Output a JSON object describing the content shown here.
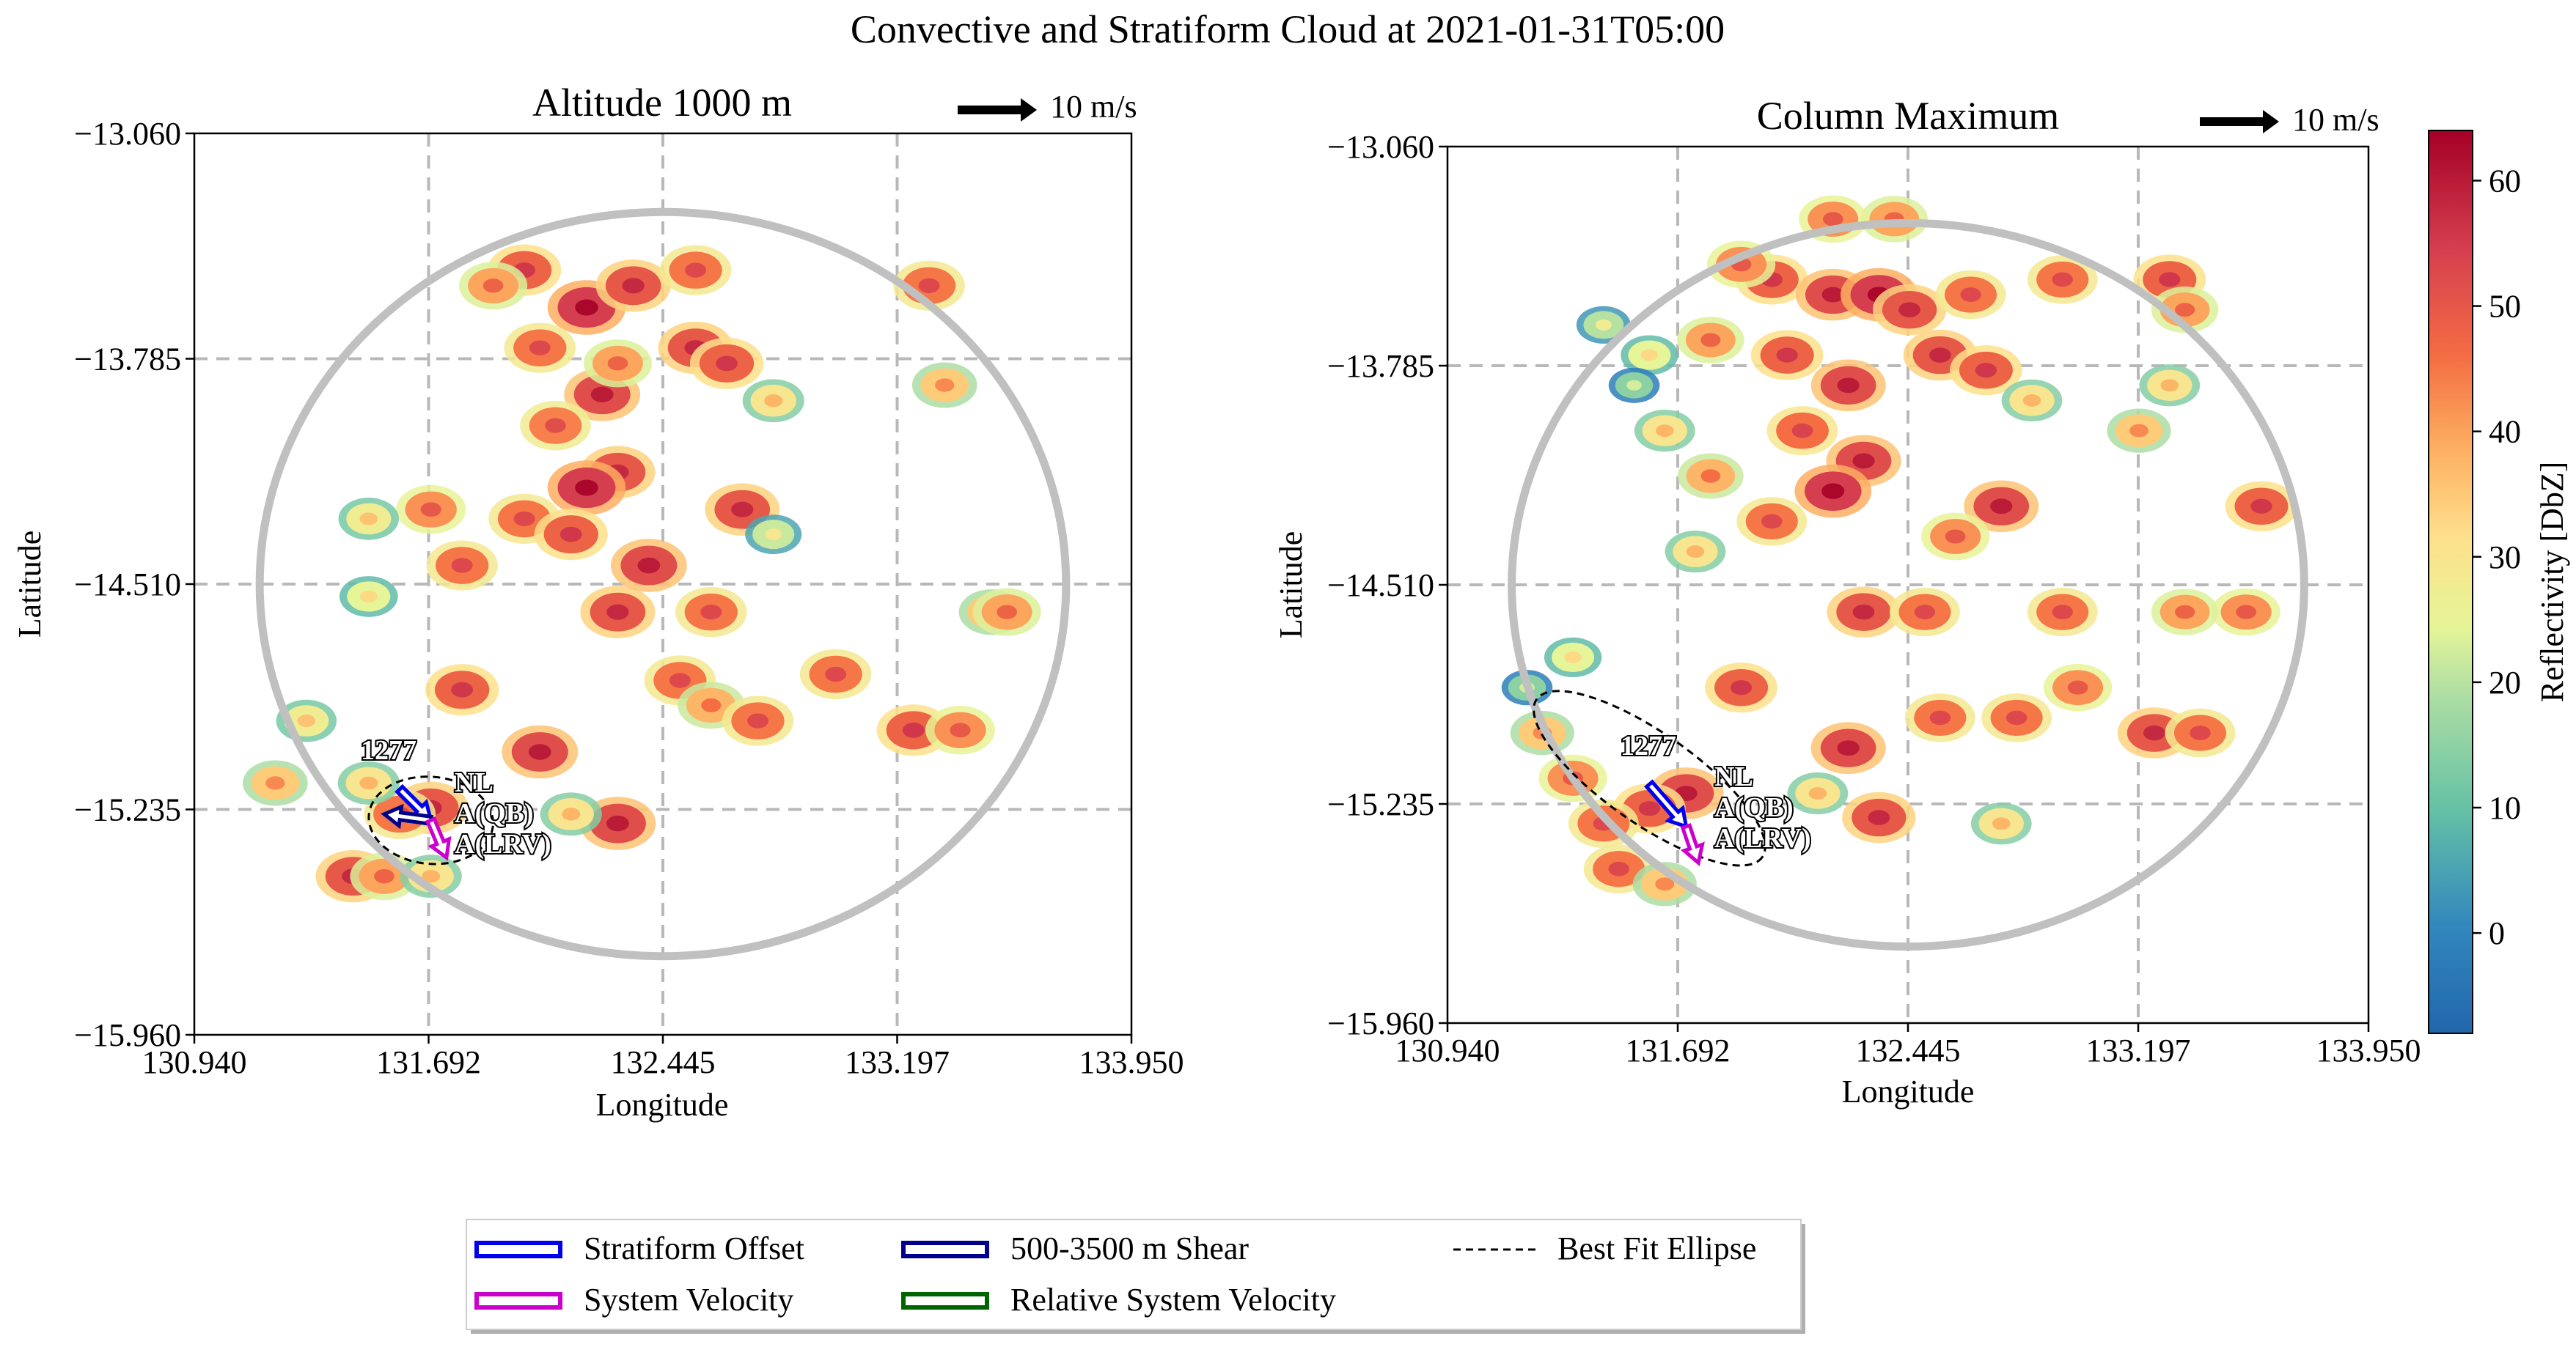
{
  "figure": {
    "suptitle": "Convective and Stratiform Cloud at 2021-01-31T05:00"
  },
  "chart_data": [
    {
      "type": "heatmap",
      "title": "Altitude 1000 m",
      "xlabel": "Longitude",
      "ylabel": "Latitude",
      "xlim": [
        130.94,
        133.95
      ],
      "ylim": [
        -15.96,
        -13.06
      ],
      "xticks": [
        "130.940",
        "131.692",
        "132.445",
        "133.197",
        "133.950"
      ],
      "yticks": [
        "−13.060",
        "−13.785",
        "−14.510",
        "−15.235",
        "−15.960"
      ],
      "grid": true,
      "wind_key": "10 m/s",
      "system_id": "1277",
      "labels": [
        "NL",
        "A(QB)",
        "A(LRV)"
      ],
      "radar_range_ring": {
        "center_lon": 132.445,
        "center_lat": -14.51,
        "radius_deg": 1.4
      },
      "best_fit_ellipse": {
        "center_lon": 131.7,
        "center_lat": -15.27,
        "semi_major_deg": 0.2,
        "semi_minor_deg": 0.14,
        "angle_deg": 5
      },
      "arrows": [
        {
          "name": "Stratiform Offset",
          "lon0": 131.6,
          "lat0": -15.17,
          "lon1": 131.7,
          "lat1": -15.27
        },
        {
          "name": "500-3500 m Shear",
          "lon0": 131.7,
          "lat0": -15.27,
          "lon1": 131.55,
          "lat1": -15.25
        },
        {
          "name": "System Velocity",
          "lon0": 131.7,
          "lat0": -15.27,
          "lon1": 131.75,
          "lat1": -15.39
        }
      ],
      "echo_cells": [
        {
          "lon": 132.0,
          "lat": -13.5,
          "dbz": 48
        },
        {
          "lon": 132.2,
          "lat": -13.62,
          "dbz": 55
        },
        {
          "lon": 132.35,
          "lat": -13.55,
          "dbz": 50
        },
        {
          "lon": 131.9,
          "lat": -13.55,
          "dbz": 40
        },
        {
          "lon": 132.05,
          "lat": -13.75,
          "dbz": 45
        },
        {
          "lon": 132.25,
          "lat": -13.9,
          "dbz": 52
        },
        {
          "lon": 132.1,
          "lat": -14.0,
          "dbz": 44
        },
        {
          "lon": 132.3,
          "lat": -14.15,
          "dbz": 50
        },
        {
          "lon": 132.2,
          "lat": -14.2,
          "dbz": 55
        },
        {
          "lon": 132.0,
          "lat": -14.3,
          "dbz": 45
        },
        {
          "lon": 132.15,
          "lat": -14.35,
          "dbz": 48
        },
        {
          "lon": 132.55,
          "lat": -13.75,
          "dbz": 50
        },
        {
          "lon": 132.65,
          "lat": -13.8,
          "dbz": 48
        },
        {
          "lon": 132.55,
          "lat": -13.5,
          "dbz": 45
        },
        {
          "lon": 132.3,
          "lat": -13.8,
          "dbz": 40
        },
        {
          "lon": 132.8,
          "lat": -13.92,
          "dbz": 30
        },
        {
          "lon": 133.3,
          "lat": -13.55,
          "dbz": 45
        },
        {
          "lon": 133.35,
          "lat": -13.87,
          "dbz": 35
        },
        {
          "lon": 131.7,
          "lat": -14.27,
          "dbz": 42
        },
        {
          "lon": 131.5,
          "lat": -14.3,
          "dbz": 28
        },
        {
          "lon": 131.5,
          "lat": -14.55,
          "dbz": 25
        },
        {
          "lon": 131.8,
          "lat": -14.45,
          "dbz": 45
        },
        {
          "lon": 132.7,
          "lat": -14.27,
          "dbz": 50
        },
        {
          "lon": 132.8,
          "lat": -14.35,
          "dbz": 22
        },
        {
          "lon": 132.3,
          "lat": -14.6,
          "dbz": 50
        },
        {
          "lon": 132.4,
          "lat": -14.45,
          "dbz": 52
        },
        {
          "lon": 131.8,
          "lat": -14.85,
          "dbz": 48
        },
        {
          "lon": 132.05,
          "lat": -15.05,
          "dbz": 52
        },
        {
          "lon": 132.5,
          "lat": -14.82,
          "dbz": 45
        },
        {
          "lon": 132.6,
          "lat": -14.9,
          "dbz": 38
        },
        {
          "lon": 132.75,
          "lat": -14.95,
          "dbz": 45
        },
        {
          "lon": 133.0,
          "lat": -14.8,
          "dbz": 45
        },
        {
          "lon": 133.25,
          "lat": -14.98,
          "dbz": 48
        },
        {
          "lon": 133.4,
          "lat": -14.98,
          "dbz": 42
        },
        {
          "lon": 133.5,
          "lat": -14.6,
          "dbz": 35
        },
        {
          "lon": 133.55,
          "lat": -14.6,
          "dbz": 40
        },
        {
          "lon": 132.6,
          "lat": -14.6,
          "dbz": 45
        },
        {
          "lon": 132.3,
          "lat": -15.28,
          "dbz": 52
        },
        {
          "lon": 132.15,
          "lat": -15.25,
          "dbz": 30
        },
        {
          "lon": 131.7,
          "lat": -15.23,
          "dbz": 50
        },
        {
          "lon": 131.6,
          "lat": -15.25,
          "dbz": 45
        },
        {
          "lon": 131.5,
          "lat": -15.15,
          "dbz": 30
        },
        {
          "lon": 131.45,
          "lat": -15.45,
          "dbz": 50
        },
        {
          "lon": 131.55,
          "lat": -15.45,
          "dbz": 40
        },
        {
          "lon": 131.7,
          "lat": -15.45,
          "dbz": 30
        },
        {
          "lon": 131.2,
          "lat": -15.15,
          "dbz": 35
        },
        {
          "lon": 131.3,
          "lat": -14.95,
          "dbz": 28
        }
      ]
    },
    {
      "type": "heatmap",
      "title": "Column Maximum",
      "xlabel": "Longitude",
      "ylabel": "Latitude",
      "xlim": [
        130.94,
        133.95
      ],
      "ylim": [
        -15.96,
        -13.06
      ],
      "xticks": [
        "130.940",
        "131.692",
        "132.445",
        "133.197",
        "133.950"
      ],
      "yticks": [
        "−13.060",
        "−13.785",
        "−14.510",
        "−15.235",
        "−15.960"
      ],
      "grid": true,
      "wind_key": "10 m/s",
      "system_id": "1277",
      "labels": [
        "NL",
        "A(QB)",
        "A(LRV)"
      ],
      "radar_range_ring": {
        "center_lon": 132.445,
        "center_lat": -14.51,
        "radius_deg": 1.4
      },
      "best_fit_ellipse": {
        "center_lon": 131.6,
        "center_lat": -15.15,
        "semi_major_deg": 0.45,
        "semi_minor_deg": 0.15,
        "angle_deg": 35
      },
      "arrows": [
        {
          "name": "Stratiform Offset",
          "lon0": 131.6,
          "lat0": -15.17,
          "lon1": 131.72,
          "lat1": -15.31
        },
        {
          "name": "System Velocity",
          "lon0": 131.72,
          "lat0": -15.31,
          "lon1": 131.76,
          "lat1": -15.43
        }
      ],
      "echo_cells": [
        {
          "lon": 132.0,
          "lat": -13.5,
          "dbz": 48
        },
        {
          "lon": 132.2,
          "lat": -13.55,
          "dbz": 52
        },
        {
          "lon": 132.35,
          "lat": -13.55,
          "dbz": 55
        },
        {
          "lon": 132.45,
          "lat": -13.6,
          "dbz": 50
        },
        {
          "lon": 131.9,
          "lat": -13.45,
          "dbz": 42
        },
        {
          "lon": 131.8,
          "lat": -13.7,
          "dbz": 40
        },
        {
          "lon": 132.05,
          "lat": -13.75,
          "dbz": 48
        },
        {
          "lon": 132.25,
          "lat": -13.85,
          "dbz": 52
        },
        {
          "lon": 132.1,
          "lat": -14.0,
          "dbz": 46
        },
        {
          "lon": 132.3,
          "lat": -14.1,
          "dbz": 52
        },
        {
          "lon": 132.2,
          "lat": -14.2,
          "dbz": 55
        },
        {
          "lon": 132.0,
          "lat": -14.3,
          "dbz": 45
        },
        {
          "lon": 131.8,
          "lat": -14.15,
          "dbz": 38
        },
        {
          "lon": 131.65,
          "lat": -14.0,
          "dbz": 30
        },
        {
          "lon": 131.6,
          "lat": -13.75,
          "dbz": 25
        },
        {
          "lon": 131.45,
          "lat": -13.65,
          "dbz": 20
        },
        {
          "lon": 131.55,
          "lat": -13.85,
          "dbz": 15
        },
        {
          "lon": 132.55,
          "lat": -13.75,
          "dbz": 50
        },
        {
          "lon": 132.7,
          "lat": -13.8,
          "dbz": 48
        },
        {
          "lon": 132.65,
          "lat": -13.55,
          "dbz": 45
        },
        {
          "lon": 132.4,
          "lat": -13.3,
          "dbz": 40
        },
        {
          "lon": 132.2,
          "lat": -13.3,
          "dbz": 42
        },
        {
          "lon": 132.85,
          "lat": -13.9,
          "dbz": 30
        },
        {
          "lon": 133.3,
          "lat": -13.5,
          "dbz": 48
        },
        {
          "lon": 133.35,
          "lat": -13.6,
          "dbz": 40
        },
        {
          "lon": 133.3,
          "lat": -13.85,
          "dbz": 30
        },
        {
          "lon": 132.95,
          "lat": -13.5,
          "dbz": 45
        },
        {
          "lon": 132.75,
          "lat": -14.25,
          "dbz": 52
        },
        {
          "lon": 132.6,
          "lat": -14.35,
          "dbz": 42
        },
        {
          "lon": 133.2,
          "lat": -14.0,
          "dbz": 35
        },
        {
          "lon": 133.6,
          "lat": -14.25,
          "dbz": 48
        },
        {
          "lon": 131.75,
          "lat": -14.4,
          "dbz": 30
        },
        {
          "lon": 132.3,
          "lat": -14.6,
          "dbz": 50
        },
        {
          "lon": 132.5,
          "lat": -14.6,
          "dbz": 45
        },
        {
          "lon": 131.9,
          "lat": -14.85,
          "dbz": 48
        },
        {
          "lon": 132.25,
          "lat": -15.05,
          "dbz": 52
        },
        {
          "lon": 132.15,
          "lat": -15.2,
          "dbz": 30
        },
        {
          "lon": 132.55,
          "lat": -14.95,
          "dbz": 45
        },
        {
          "lon": 132.8,
          "lat": -14.95,
          "dbz": 45
        },
        {
          "lon": 133.0,
          "lat": -14.85,
          "dbz": 42
        },
        {
          "lon": 133.25,
          "lat": -15.0,
          "dbz": 50
        },
        {
          "lon": 133.4,
          "lat": -15.0,
          "dbz": 45
        },
        {
          "lon": 133.55,
          "lat": -14.6,
          "dbz": 42
        },
        {
          "lon": 133.35,
          "lat": -14.6,
          "dbz": 40
        },
        {
          "lon": 132.95,
          "lat": -14.6,
          "dbz": 45
        },
        {
          "lon": 132.35,
          "lat": -15.28,
          "dbz": 50
        },
        {
          "lon": 131.72,
          "lat": -15.2,
          "dbz": 52
        },
        {
          "lon": 131.6,
          "lat": -15.25,
          "dbz": 48
        },
        {
          "lon": 131.45,
          "lat": -15.3,
          "dbz": 45
        },
        {
          "lon": 131.35,
          "lat": -15.15,
          "dbz": 42
        },
        {
          "lon": 131.25,
          "lat": -15.0,
          "dbz": 35
        },
        {
          "lon": 131.5,
          "lat": -15.45,
          "dbz": 45
        },
        {
          "lon": 131.65,
          "lat": -15.5,
          "dbz": 35
        },
        {
          "lon": 131.2,
          "lat": -14.85,
          "dbz": 15
        },
        {
          "lon": 131.35,
          "lat": -14.75,
          "dbz": 25
        },
        {
          "lon": 132.75,
          "lat": -15.3,
          "dbz": 30
        }
      ]
    }
  ],
  "colorbar": {
    "label": "Reflectivity [DbZ]",
    "min": -8,
    "max": 64,
    "ticks": [
      "0",
      "10",
      "20",
      "30",
      "40",
      "50",
      "60"
    ],
    "cmap": "Spectral_r"
  },
  "legend": {
    "entries": [
      {
        "label": "Stratiform Offset",
        "color": "#0000ee",
        "style": "arrow-outline"
      },
      {
        "label": "System Velocity",
        "color": "#cc00cc",
        "style": "arrow-outline"
      },
      {
        "label": "500-3500 m Shear",
        "color": "#00008b",
        "style": "arrow-outline"
      },
      {
        "label": "Relative System Velocity",
        "color": "#006400",
        "style": "arrow-outline"
      },
      {
        "label": "Best Fit Ellipse",
        "color": "#000000",
        "style": "dashed"
      }
    ]
  }
}
